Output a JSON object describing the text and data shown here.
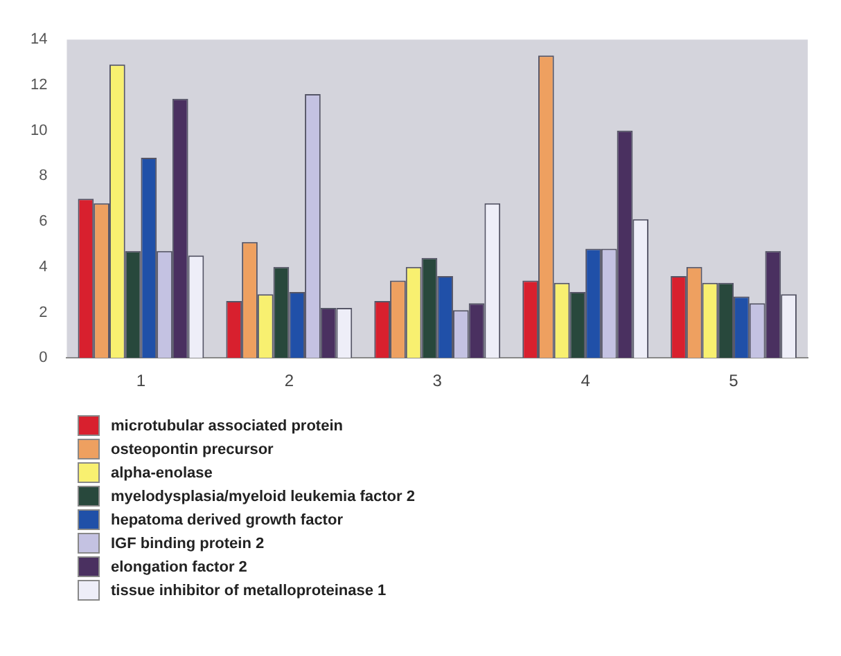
{
  "chart_data": {
    "type": "bar",
    "categories": [
      "1",
      "2",
      "3",
      "4",
      "5"
    ],
    "series": [
      {
        "name": "microtubular associated protein",
        "color": "#d8202e",
        "values": [
          7.0,
          2.5,
          2.5,
          3.4,
          3.6
        ]
      },
      {
        "name": "osteopontin precursor",
        "color": "#eea060",
        "values": [
          6.8,
          5.1,
          3.4,
          13.3,
          4.0
        ]
      },
      {
        "name": "alpha-enolase",
        "color": "#f8f070",
        "values": [
          12.9,
          2.8,
          4.0,
          3.3,
          3.3
        ]
      },
      {
        "name": "myelodysplasia/myeloid leukemia factor 2",
        "color": "#28483c",
        "values": [
          4.7,
          4.0,
          4.4,
          2.9,
          3.3
        ]
      },
      {
        "name": "hepatoma derived growth factor",
        "color": "#2050a8",
        "values": [
          8.8,
          2.9,
          3.6,
          4.8,
          2.7
        ]
      },
      {
        "name": "IGF binding protein 2",
        "color": "#c4c2e2",
        "values": [
          4.7,
          11.6,
          2.1,
          4.8,
          2.4
        ]
      },
      {
        "name": "elongation factor 2",
        "color": "#4a3060",
        "values": [
          11.4,
          2.2,
          2.4,
          10.0,
          4.7
        ]
      },
      {
        "name": "tissue inhibitor of metalloproteinase 1",
        "color": "#eeeef8",
        "values": [
          4.5,
          2.2,
          6.8,
          6.1,
          2.8
        ]
      }
    ],
    "ylim": [
      0,
      14
    ],
    "yticks": [
      0,
      2,
      4,
      6,
      8,
      10,
      12,
      14
    ],
    "grid": false,
    "legend": "bottom left"
  }
}
